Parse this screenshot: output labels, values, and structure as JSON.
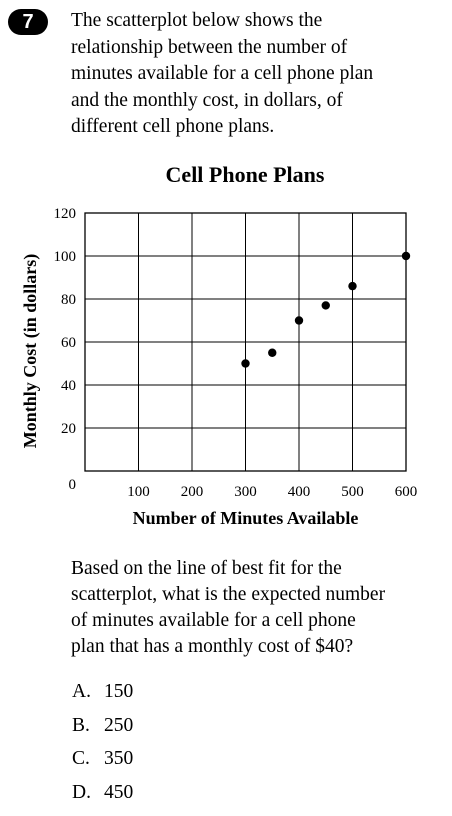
{
  "question": {
    "number": "7",
    "stem_lines": [
      "The scatterplot below shows the",
      "relationship between the number of",
      "minutes available for a cell phone plan",
      "and the monthly cost, in dollars, of",
      "different cell phone plans."
    ],
    "prompt_lines": [
      "Based on the line of best fit for the",
      "scatterplot, what is the expected number",
      "of minutes available for a cell phone",
      "plan that has a monthly cost of $40?"
    ],
    "choices": [
      {
        "letter": "A.",
        "value": "150"
      },
      {
        "letter": "B.",
        "value": "250"
      },
      {
        "letter": "C.",
        "value": "350"
      },
      {
        "letter": "D.",
        "value": "450"
      }
    ]
  },
  "chart_data": {
    "type": "scatter",
    "title": "Cell Phone Plans",
    "xlabel": "Number of Minutes Available",
    "ylabel": "Monthly Cost (in dollars)",
    "xlim": [
      0,
      600
    ],
    "ylim": [
      0,
      120
    ],
    "x_ticks": [
      0,
      100,
      200,
      300,
      400,
      500,
      600
    ],
    "y_ticks": [
      0,
      20,
      40,
      60,
      80,
      100,
      120
    ],
    "grid": true,
    "series": [
      {
        "color": "#000000",
        "points": [
          {
            "x": 300,
            "y": 50
          },
          {
            "x": 350,
            "y": 55
          },
          {
            "x": 400,
            "y": 70
          },
          {
            "x": 450,
            "y": 77
          },
          {
            "x": 500,
            "y": 86
          },
          {
            "x": 600,
            "y": 100
          }
        ]
      }
    ]
  }
}
